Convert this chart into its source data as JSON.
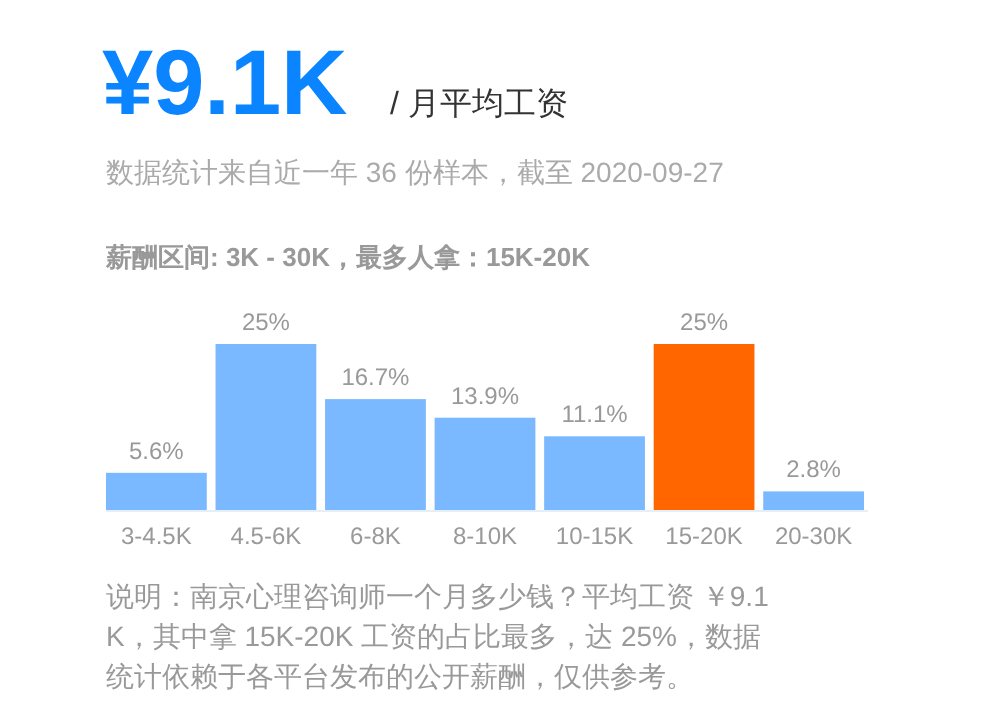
{
  "chart_data": {
    "type": "bar",
    "title": "¥9.1K",
    "subtitle": "/ 月平均工资",
    "annotations": [
      "数据统计来自近一年 36 份样本，截至 2020-09-27",
      "薪酬区间: 3K - 30K，最多人拿：15K-20K",
      "说明：南京心理咨询师一个月多少钱？平均工资 ￥9.1K，其中拿 15K-20K 工资的占比最多，达 25%，数据统计依赖于各平台发布的公开薪酬，仅供参考。"
    ],
    "categories": [
      "3-4.5K",
      "4.5-6K",
      "6-8K",
      "8-10K",
      "10-15K",
      "15-20K",
      "20-30K"
    ],
    "values": [
      5.6,
      25,
      16.7,
      13.9,
      11.1,
      25,
      2.8
    ],
    "colors": [
      "#7ab8ff",
      "#7ab8ff",
      "#7ab8ff",
      "#7ab8ff",
      "#7ab8ff",
      "#ff6600",
      "#7ab8ff"
    ],
    "value_labels": [
      "5.6%",
      "25%",
      "16.7%",
      "13.9%",
      "11.1%",
      "25%",
      "2.8%"
    ]
  }
}
